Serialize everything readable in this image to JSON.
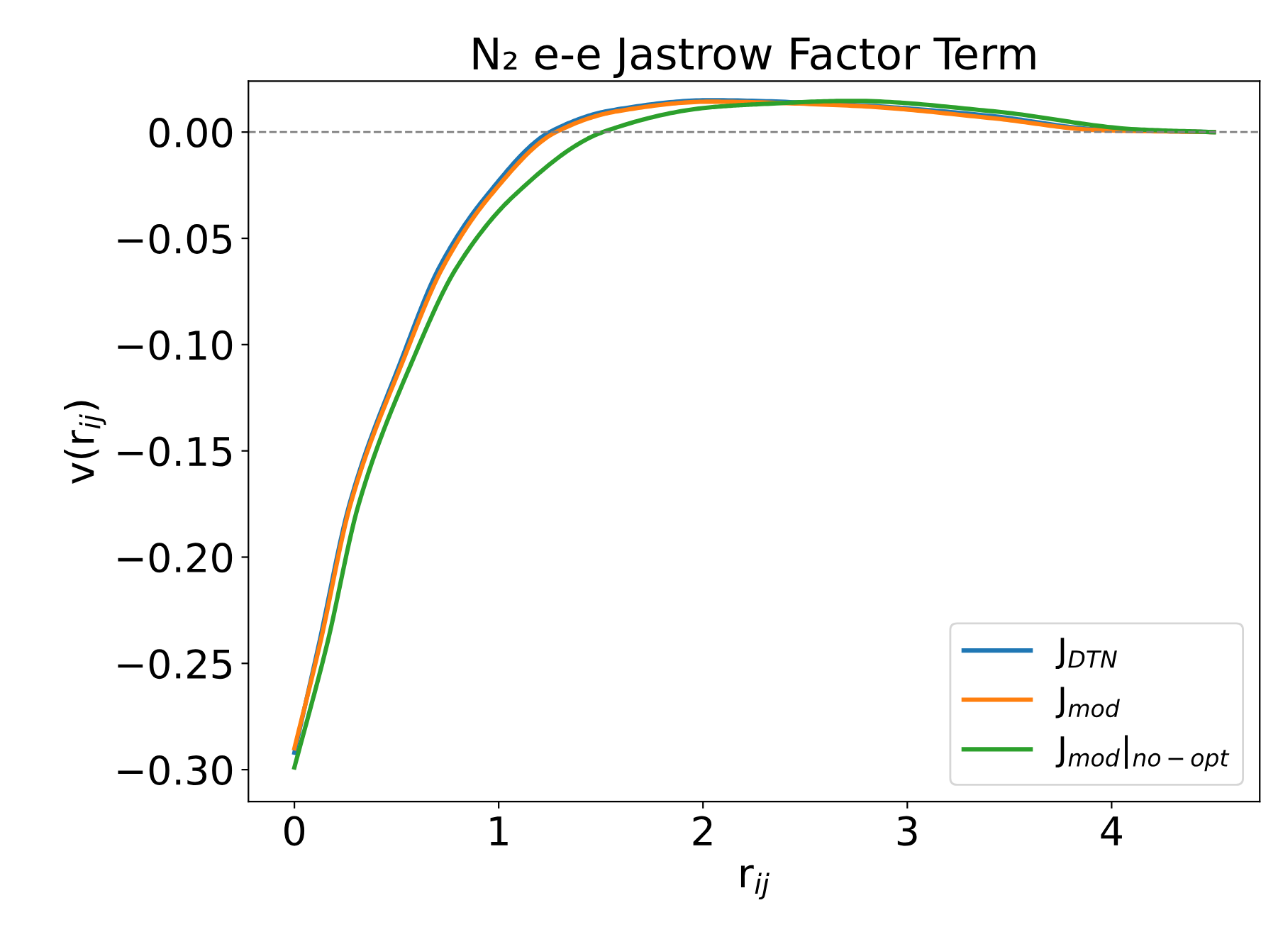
{
  "chart_data": {
    "type": "line",
    "title": "N₂ e-e Jastrow Factor Term",
    "xlabel": "r$_{ij}$",
    "ylabel": "v(r$_{ij}$)",
    "xlim": [
      -0.225,
      4.725
    ],
    "ylim": [
      -0.315,
      0.024
    ],
    "xticks": [
      0,
      1,
      2,
      3,
      4
    ],
    "yticks": [
      {
        "value": 0,
        "label": "0.00"
      },
      {
        "value": -0.05,
        "label": "−0.05"
      },
      {
        "value": -0.1,
        "label": "−0.10"
      },
      {
        "value": -0.15,
        "label": "−0.15"
      },
      {
        "value": -0.2,
        "label": "−0.20"
      },
      {
        "value": -0.25,
        "label": "−0.25"
      },
      {
        "value": -0.3,
        "label": "−0.30"
      }
    ],
    "grid": false,
    "legend": "bottom right",
    "marker": "none",
    "line_style": "solid",
    "ref_lines": [
      {
        "axis": "y",
        "value": 0,
        "color": "#808080",
        "line_style": "dashed"
      }
    ],
    "series": [
      {
        "name": "J$_{DTN}$",
        "color": "#1f77b4",
        "x": [
          0,
          0.12,
          0.27,
          0.52,
          0.71,
          0.94,
          1.25,
          1.55,
          2.03,
          2.73,
          3.42,
          3.94,
          4.5
        ],
        "values": [
          -0.292,
          -0.241,
          -0.175,
          -0.108,
          -0.0635,
          -0.03,
          0,
          0.0102,
          0.015,
          0.0128,
          0.0075,
          0.0012,
          0
        ]
      },
      {
        "name": "J$_{mod}$",
        "color": "#ff7f0e",
        "x": [
          0,
          0.125,
          0.275,
          0.53,
          0.727,
          0.958,
          1.28,
          1.58,
          2.03,
          2.73,
          3.42,
          3.94,
          4.5
        ],
        "values": [
          -0.29,
          -0.241,
          -0.175,
          -0.108,
          -0.0635,
          -0.03,
          0,
          0.0098,
          0.0143,
          0.0124,
          0.0065,
          0.0009,
          0
        ]
      },
      {
        "name": "J$_{mod}$|$_{no−opt}$",
        "color": "#2ca02c",
        "x": [
          0,
          0.16,
          0.315,
          0.576,
          0.796,
          1.074,
          1.51,
          2.03,
          2.27,
          2.73,
          3.42,
          4.12,
          4.5
        ],
        "values": [
          -0.299,
          -0.241,
          -0.175,
          -0.108,
          -0.0635,
          -0.03,
          0,
          0.0116,
          0.0131,
          0.0147,
          0.0098,
          0.0013,
          0
        ]
      }
    ]
  }
}
